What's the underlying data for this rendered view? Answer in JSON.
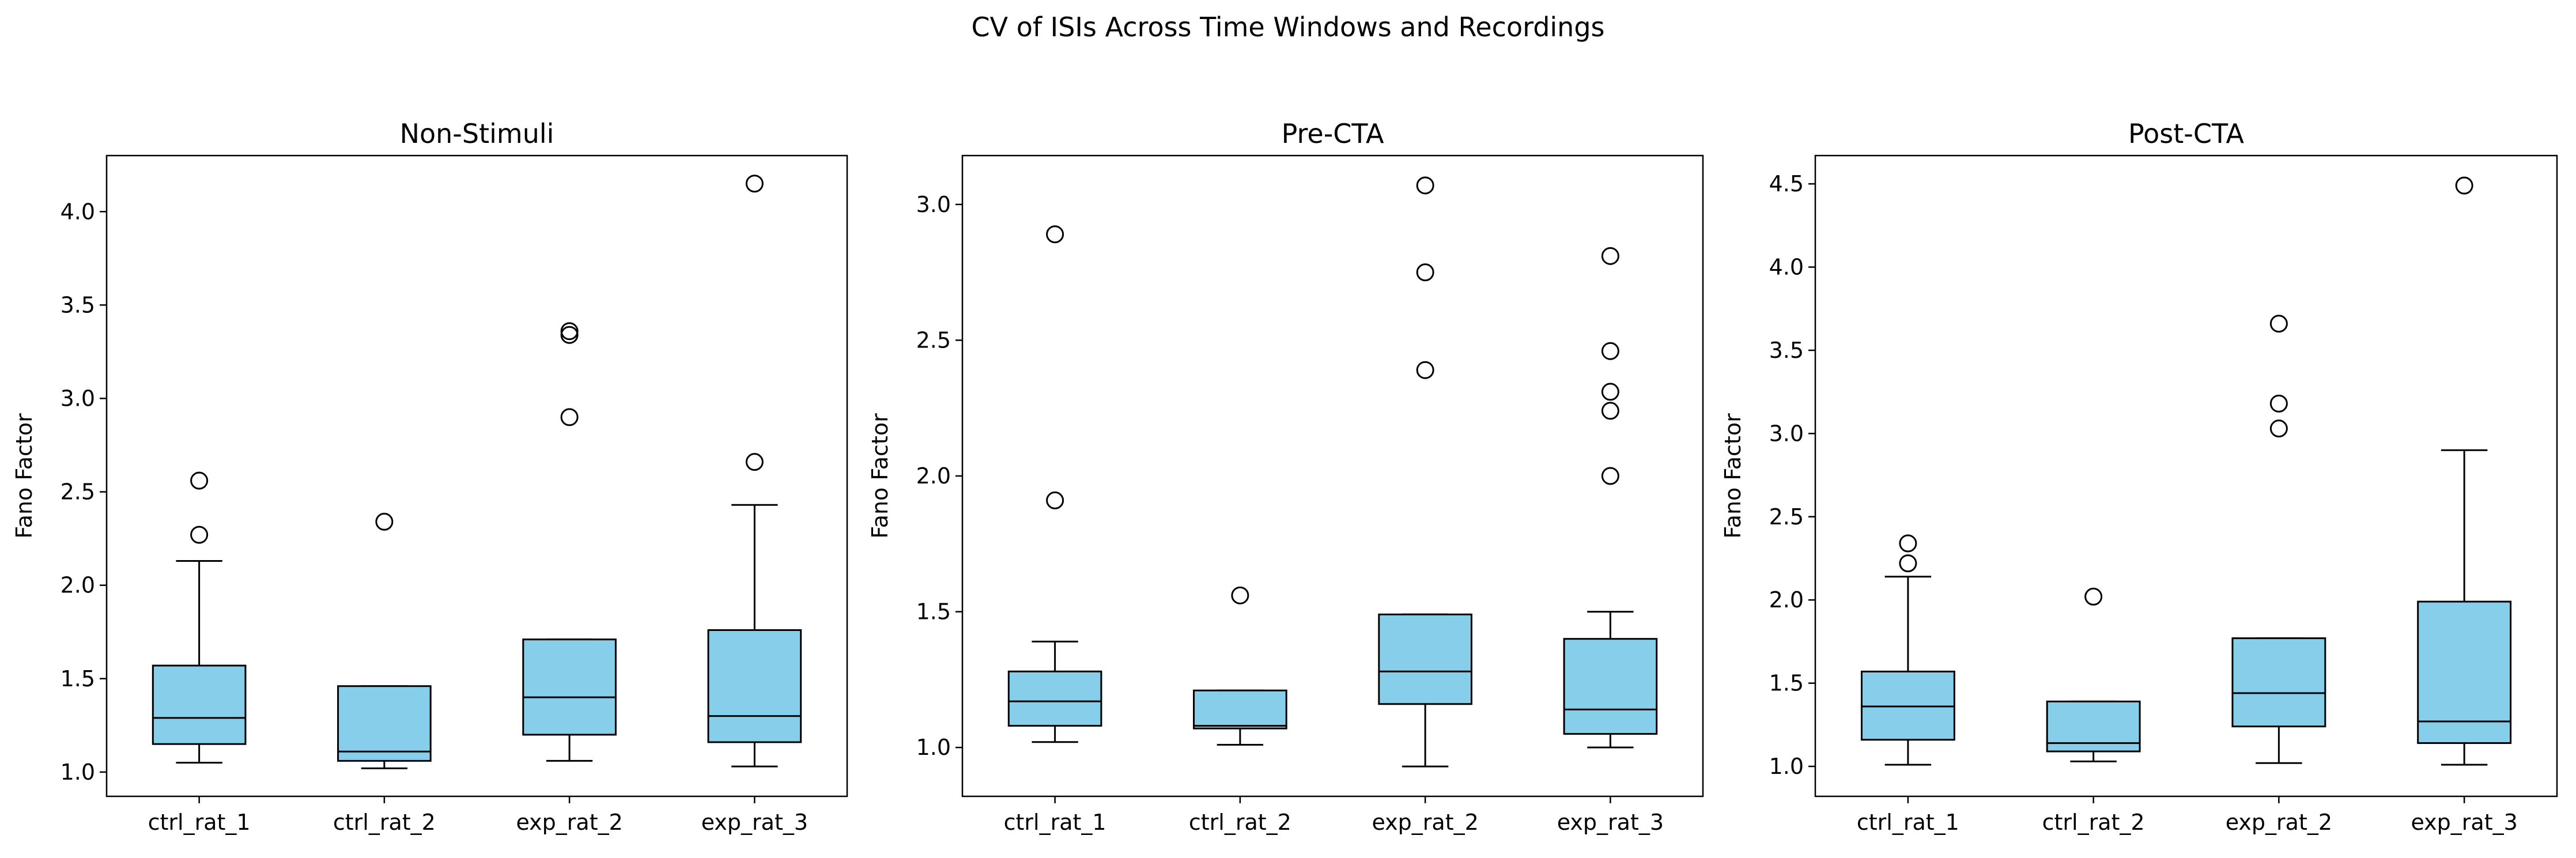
{
  "figure": {
    "suptitle": "CV of ISIs Across Time Windows and Recordings",
    "box_fill": "#87CEEB",
    "edge_color": "#000000"
  },
  "chart_data": [
    {
      "type": "box",
      "title": "Non-Stimuli",
      "ylabel": "Fano Factor",
      "xlabel": "",
      "ylim": [
        0.87,
        4.3
      ],
      "yticks": [
        "1.0",
        "1.5",
        "2.0",
        "2.5",
        "3.0",
        "3.5",
        "4.0"
      ],
      "categories": [
        "ctrl_rat_1",
        "ctrl_rat_2",
        "exp_rat_2",
        "exp_rat_3"
      ],
      "boxes": [
        {
          "whislo": 1.05,
          "q1": 1.15,
          "med": 1.29,
          "q3": 1.57,
          "whishi": 2.13,
          "fliers": [
            2.27,
            2.56
          ]
        },
        {
          "whislo": 1.02,
          "q1": 1.06,
          "med": 1.11,
          "q3": 1.46,
          "whishi": 1.46,
          "fliers": [
            2.34
          ]
        },
        {
          "whislo": 1.06,
          "q1": 1.2,
          "med": 1.4,
          "q3": 1.71,
          "whishi": 1.71,
          "fliers": [
            2.9,
            3.34,
            3.36
          ]
        },
        {
          "whislo": 1.03,
          "q1": 1.16,
          "med": 1.3,
          "q3": 1.76,
          "whishi": 2.43,
          "fliers": [
            2.66,
            4.15
          ]
        }
      ]
    },
    {
      "type": "box",
      "title": "Pre-CTA",
      "ylabel": "Fano Factor",
      "xlabel": "",
      "ylim": [
        0.82,
        3.18
      ],
      "yticks": [
        "1.0",
        "1.5",
        "2.0",
        "2.5",
        "3.0"
      ],
      "categories": [
        "ctrl_rat_1",
        "ctrl_rat_2",
        "exp_rat_2",
        "exp_rat_3"
      ],
      "boxes": [
        {
          "whislo": 1.02,
          "q1": 1.08,
          "med": 1.17,
          "q3": 1.28,
          "whishi": 1.39,
          "fliers": [
            1.91,
            2.89
          ]
        },
        {
          "whislo": 1.01,
          "q1": 1.07,
          "med": 1.08,
          "q3": 1.21,
          "whishi": 1.21,
          "fliers": [
            1.56
          ]
        },
        {
          "whislo": 0.93,
          "q1": 1.16,
          "med": 1.28,
          "q3": 1.49,
          "whishi": 1.49,
          "fliers": [
            2.39,
            2.75,
            3.07
          ]
        },
        {
          "whislo": 1.0,
          "q1": 1.05,
          "med": 1.14,
          "q3": 1.4,
          "whishi": 1.5,
          "fliers": [
            2.0,
            2.24,
            2.31,
            2.46,
            2.81
          ]
        }
      ]
    },
    {
      "type": "box",
      "title": "Post-CTA",
      "ylabel": "Fano Factor",
      "xlabel": "",
      "ylim": [
        0.82,
        4.67
      ],
      "yticks": [
        "1.0",
        "1.5",
        "2.0",
        "2.5",
        "3.0",
        "3.5",
        "4.0",
        "4.5"
      ],
      "categories": [
        "ctrl_rat_1",
        "ctrl_rat_2",
        "exp_rat_2",
        "exp_rat_3"
      ],
      "boxes": [
        {
          "whislo": 1.01,
          "q1": 1.16,
          "med": 1.36,
          "q3": 1.57,
          "whishi": 2.14,
          "fliers": [
            2.22,
            2.34
          ]
        },
        {
          "whislo": 1.03,
          "q1": 1.09,
          "med": 1.14,
          "q3": 1.39,
          "whishi": 1.39,
          "fliers": [
            2.02
          ]
        },
        {
          "whislo": 1.02,
          "q1": 1.24,
          "med": 1.44,
          "q3": 1.77,
          "whishi": 1.77,
          "fliers": [
            3.03,
            3.18,
            3.66
          ]
        },
        {
          "whislo": 1.01,
          "q1": 1.14,
          "med": 1.27,
          "q3": 1.99,
          "whishi": 2.9,
          "fliers": [
            4.49
          ]
        }
      ]
    }
  ]
}
